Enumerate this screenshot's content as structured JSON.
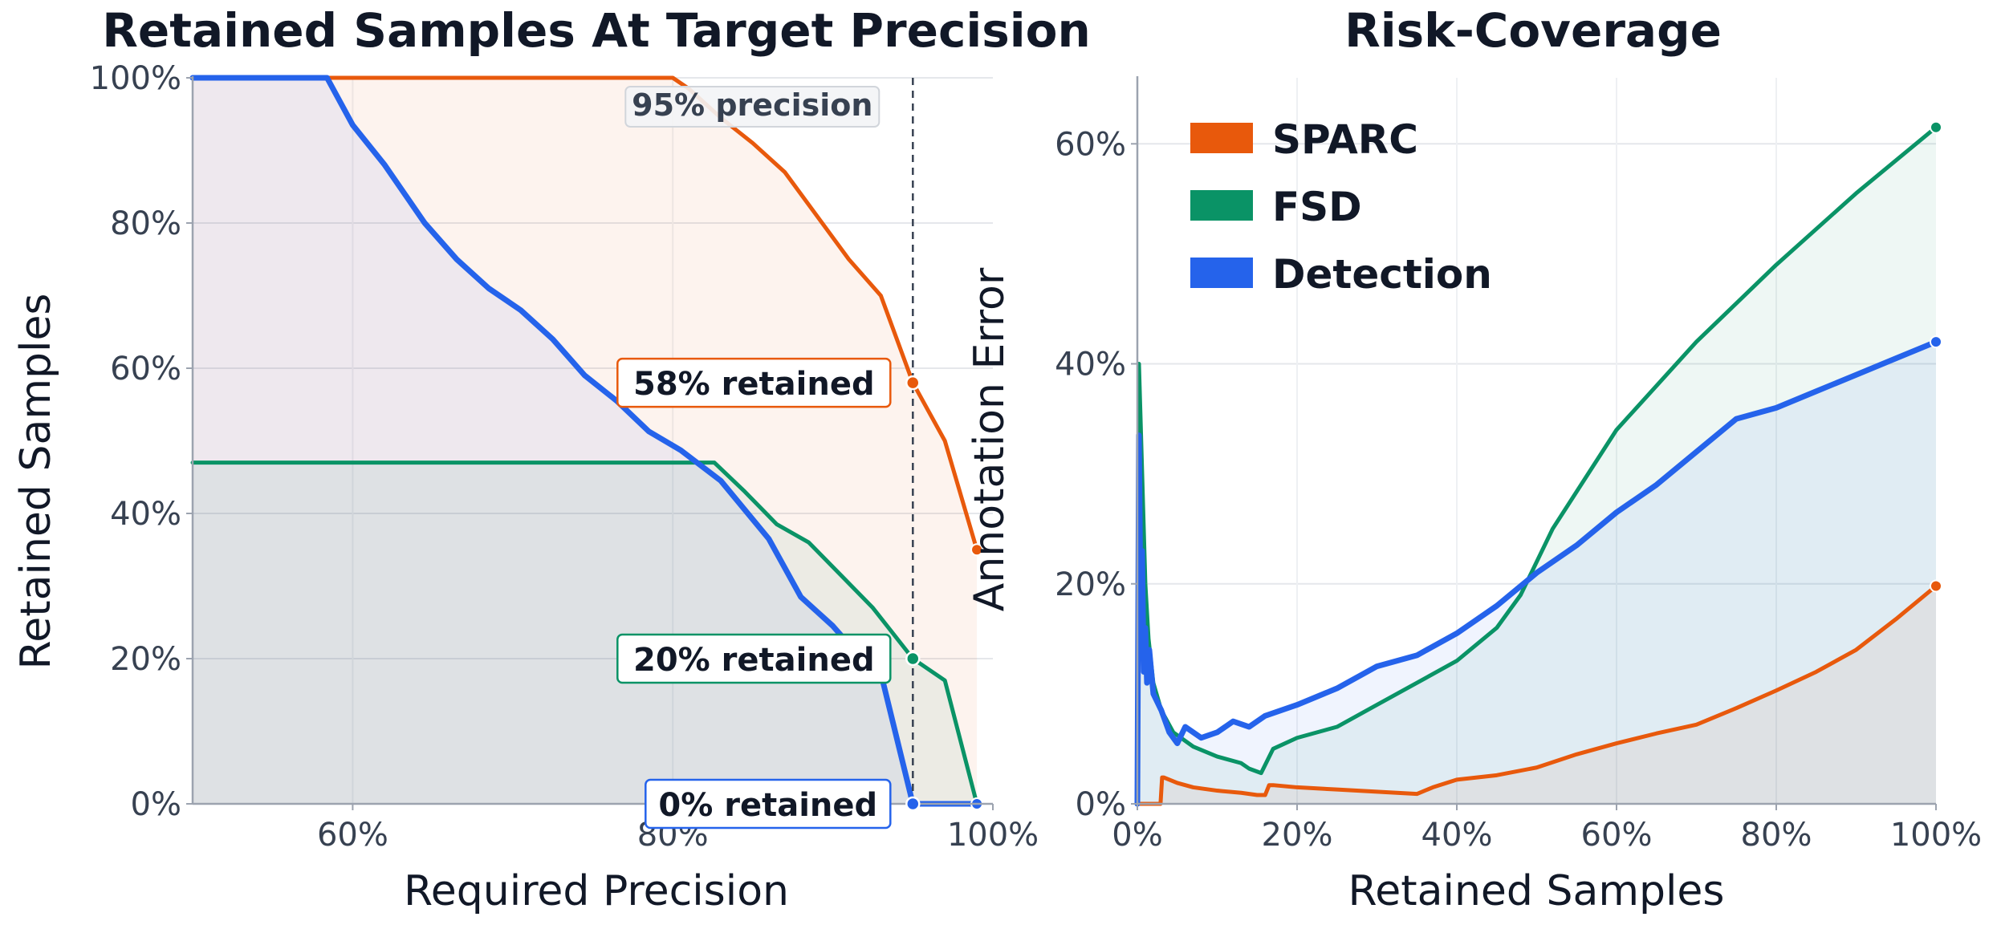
{
  "colors": {
    "sparc": "#E8590C",
    "fsd": "#0A9366",
    "detection": "#2563EB"
  },
  "chart_data": [
    {
      "type": "line",
      "title": "Retained Samples At Target Precision",
      "xlabel": "Required Precision",
      "ylabel": "Retained Samples",
      "xlim": [
        0.5,
        1.0
      ],
      "ylim": [
        0,
        1.0
      ],
      "xticks": [
        0.6,
        0.8,
        1.0
      ],
      "xtick_labels": [
        "60%",
        "80%",
        "100%"
      ],
      "yticks": [
        0,
        0.2,
        0.4,
        0.6,
        0.8,
        1.0
      ],
      "ytick_labels": [
        "0%",
        "20%",
        "40%",
        "60%",
        "80%",
        "100%"
      ],
      "grid": true,
      "series": [
        {
          "key": "sparc",
          "x": [
            0.5,
            0.8,
            0.81,
            0.83,
            0.85,
            0.87,
            0.89,
            0.91,
            0.93,
            0.95,
            0.97,
            0.99
          ],
          "y": [
            1.0,
            1.0,
            0.985,
            0.945,
            0.91,
            0.87,
            0.81,
            0.75,
            0.7,
            0.58,
            0.5,
            0.35
          ]
        },
        {
          "key": "fsd",
          "x": [
            0.5,
            0.826,
            0.845,
            0.865,
            0.885,
            0.905,
            0.925,
            0.95,
            0.97,
            0.99
          ],
          "y": [
            0.47,
            0.47,
            0.43,
            0.385,
            0.36,
            0.315,
            0.27,
            0.2,
            0.17,
            0.0
          ]
        },
        {
          "key": "detection",
          "x": [
            0.5,
            0.584,
            0.6,
            0.62,
            0.645,
            0.665,
            0.685,
            0.705,
            0.725,
            0.745,
            0.765,
            0.785,
            0.805,
            0.83,
            0.86,
            0.88,
            0.9,
            0.92,
            0.93,
            0.95,
            0.99
          ],
          "y": [
            1.0,
            1.0,
            0.935,
            0.88,
            0.8,
            0.75,
            0.71,
            0.68,
            0.64,
            0.59,
            0.555,
            0.513,
            0.487,
            0.445,
            0.365,
            0.285,
            0.245,
            0.195,
            0.18,
            0.0,
            0.0
          ]
        }
      ],
      "reference_line": {
        "x": 0.95,
        "label": "95% precision"
      },
      "point_labels": [
        {
          "key": "sparc",
          "x": 0.95,
          "y": 0.58,
          "label": "58% retained"
        },
        {
          "key": "fsd",
          "x": 0.95,
          "y": 0.2,
          "label": "20% retained"
        },
        {
          "key": "detection",
          "x": 0.95,
          "y": 0.0,
          "label": "0% retained"
        }
      ]
    },
    {
      "type": "line",
      "title": "Risk-Coverage",
      "xlabel": "Retained Samples",
      "ylabel": "Annotation Error",
      "xlim": [
        0,
        1.0
      ],
      "ylim": [
        0,
        0.66
      ],
      "xticks": [
        0,
        0.2,
        0.4,
        0.6,
        0.8,
        1.0
      ],
      "xtick_labels": [
        "0%",
        "20%",
        "40%",
        "60%",
        "80%",
        "100%"
      ],
      "yticks": [
        0,
        0.2,
        0.4,
        0.6
      ],
      "ytick_labels": [
        "0%",
        "20%",
        "40%",
        "60%"
      ],
      "grid": true,
      "legend_position": "top-left",
      "series": [
        {
          "key": "sparc",
          "name": "SPARC",
          "x": [
            0.0,
            0.029,
            0.031,
            0.033,
            0.05,
            0.07,
            0.1,
            0.13,
            0.15,
            0.16,
            0.165,
            0.17,
            0.2,
            0.25,
            0.3,
            0.35,
            0.37,
            0.4,
            0.45,
            0.5,
            0.55,
            0.6,
            0.65,
            0.7,
            0.75,
            0.8,
            0.85,
            0.9,
            0.95,
            1.0
          ],
          "y": [
            0.0,
            0.0,
            0.024,
            0.024,
            0.019,
            0.015,
            0.012,
            0.01,
            0.008,
            0.008,
            0.017,
            0.017,
            0.015,
            0.013,
            0.011,
            0.009,
            0.015,
            0.022,
            0.026,
            0.033,
            0.045,
            0.055,
            0.064,
            0.072,
            0.087,
            0.103,
            0.12,
            0.14,
            0.168,
            0.198
          ]
        },
        {
          "key": "fsd",
          "name": "FSD",
          "x": [
            0.0,
            0.002,
            0.006,
            0.01,
            0.014,
            0.02,
            0.03,
            0.045,
            0.07,
            0.1,
            0.13,
            0.14,
            0.155,
            0.17,
            0.2,
            0.25,
            0.3,
            0.35,
            0.4,
            0.45,
            0.48,
            0.52,
            0.6,
            0.7,
            0.8,
            0.9,
            1.0
          ],
          "y": [
            0.0,
            0.4,
            0.3,
            0.2,
            0.15,
            0.11,
            0.085,
            0.065,
            0.052,
            0.043,
            0.037,
            0.032,
            0.028,
            0.05,
            0.06,
            0.07,
            0.09,
            0.11,
            0.13,
            0.16,
            0.19,
            0.25,
            0.34,
            0.42,
            0.49,
            0.555,
            0.615
          ]
        },
        {
          "key": "detection",
          "name": "Detection",
          "x": [
            0.0,
            0.002,
            0.004,
            0.006,
            0.008,
            0.01,
            0.012,
            0.015,
            0.02,
            0.03,
            0.04,
            0.05,
            0.06,
            0.08,
            0.1,
            0.12,
            0.14,
            0.16,
            0.18,
            0.2,
            0.25,
            0.3,
            0.35,
            0.4,
            0.45,
            0.5,
            0.55,
            0.6,
            0.65,
            0.7,
            0.75,
            0.8,
            0.85,
            0.9,
            0.95,
            1.0
          ],
          "y": [
            0.0,
            0.335,
            0.18,
            0.23,
            0.12,
            0.16,
            0.11,
            0.14,
            0.1,
            0.085,
            0.065,
            0.055,
            0.07,
            0.06,
            0.065,
            0.075,
            0.07,
            0.08,
            0.085,
            0.09,
            0.105,
            0.125,
            0.135,
            0.155,
            0.18,
            0.21,
            0.235,
            0.265,
            0.29,
            0.32,
            0.35,
            0.36,
            0.375,
            0.39,
            0.405,
            0.42
          ]
        }
      ]
    }
  ]
}
